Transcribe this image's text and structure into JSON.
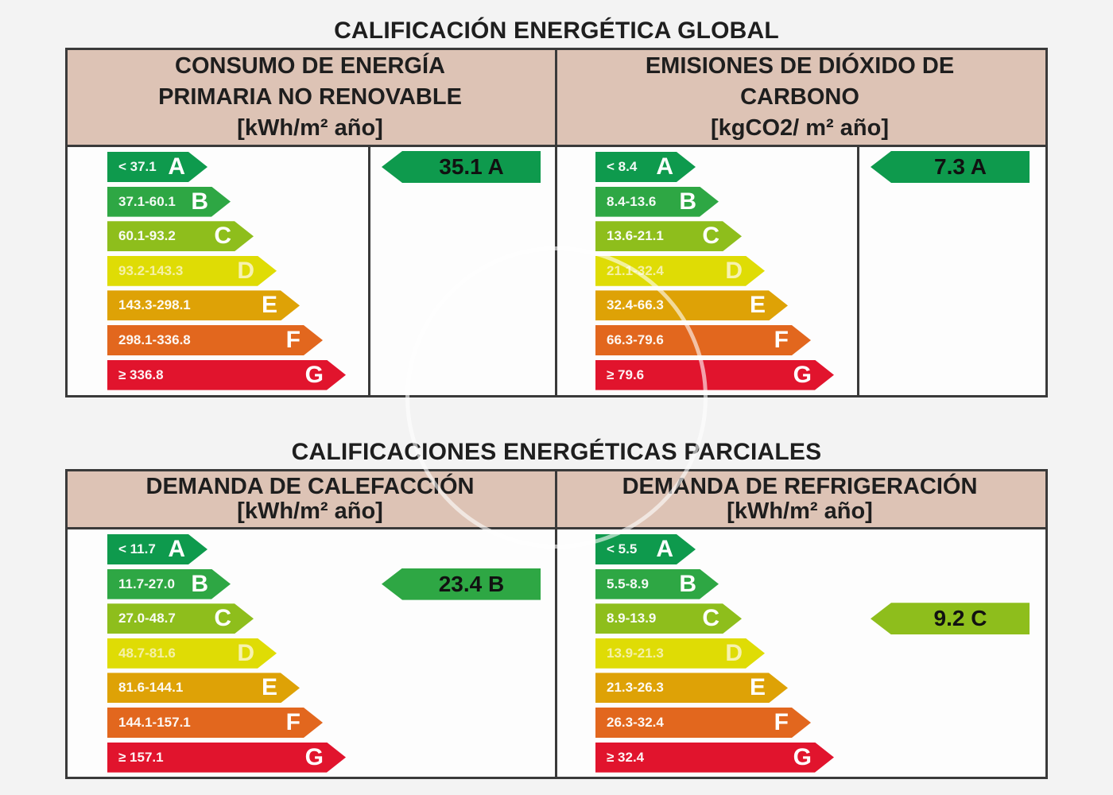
{
  "global_title": "CALIFICACIÓN ENERGÉTICA GLOBAL",
  "partial_title": "CALIFICACIONES ENERGÉTICAS PARCIALES",
  "colors": {
    "A": "#0e9a4d",
    "B": "#2ea744",
    "C": "#8ebe1c",
    "D": "#dfdc05",
    "E": "#dea206",
    "F": "#e2671e",
    "G": "#e1142d",
    "header_bg": "#ddc3b5",
    "border": "#3a3a3a"
  },
  "global": {
    "consumption": {
      "title_lines": [
        "CONSUMO DE ENERGÍA",
        "PRIMARIA NO RENOVABLE",
        "[kWh/m² año]"
      ],
      "scale": [
        {
          "letter": "A",
          "range": "< 37.1"
        },
        {
          "letter": "B",
          "range": "37.1-60.1"
        },
        {
          "letter": "C",
          "range": "60.1-93.2"
        },
        {
          "letter": "D",
          "range": "93.2-143.3"
        },
        {
          "letter": "E",
          "range": "143.3-298.1"
        },
        {
          "letter": "F",
          "range": "298.1-336.8"
        },
        {
          "letter": "G",
          "range": "≥ 336.8"
        }
      ],
      "rating": {
        "value": "35.1",
        "letter": "A"
      }
    },
    "emissions": {
      "title_lines": [
        "EMISIONES DE DIÓXIDO DE",
        "CARBONO",
        "[kgCO2/ m² año]"
      ],
      "scale": [
        {
          "letter": "A",
          "range": "< 8.4"
        },
        {
          "letter": "B",
          "range": "8.4-13.6"
        },
        {
          "letter": "C",
          "range": "13.6-21.1"
        },
        {
          "letter": "D",
          "range": "21.1-32.4"
        },
        {
          "letter": "E",
          "range": "32.4-66.3"
        },
        {
          "letter": "F",
          "range": "66.3-79.6"
        },
        {
          "letter": "G",
          "range": "≥ 79.6"
        }
      ],
      "rating": {
        "value": "7.3",
        "letter": "A"
      }
    }
  },
  "partial": {
    "heating": {
      "title_lines": [
        "DEMANDA DE CALEFACCIÓN",
        "[kWh/m² año]"
      ],
      "scale": [
        {
          "letter": "A",
          "range": "< 11.7"
        },
        {
          "letter": "B",
          "range": "11.7-27.0"
        },
        {
          "letter": "C",
          "range": "27.0-48.7"
        },
        {
          "letter": "D",
          "range": "48.7-81.6"
        },
        {
          "letter": "E",
          "range": "81.6-144.1"
        },
        {
          "letter": "F",
          "range": "144.1-157.1"
        },
        {
          "letter": "G",
          "range": "≥ 157.1"
        }
      ],
      "rating": {
        "value": "23.4",
        "letter": "B"
      }
    },
    "cooling": {
      "title_lines": [
        "DEMANDA DE REFRIGERACIÓN",
        "[kWh/m² año]"
      ],
      "scale": [
        {
          "letter": "A",
          "range": "< 5.5"
        },
        {
          "letter": "B",
          "range": "5.5-8.9"
        },
        {
          "letter": "C",
          "range": "8.9-13.9"
        },
        {
          "letter": "D",
          "range": "13.9-21.3"
        },
        {
          "letter": "E",
          "range": "21.3-26.3"
        },
        {
          "letter": "F",
          "range": "26.3-32.4"
        },
        {
          "letter": "G",
          "range": "≥ 32.4"
        }
      ],
      "rating": {
        "value": "9.2",
        "letter": "C"
      }
    }
  }
}
